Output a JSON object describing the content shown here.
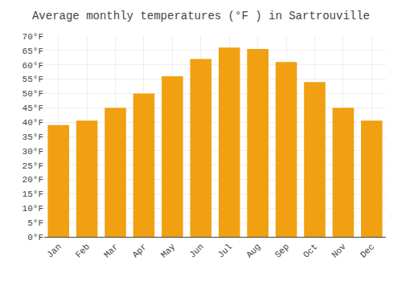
{
  "chart_data": {
    "type": "bar",
    "title": "Average monthly temperatures (°F ) in Sartrouville",
    "categories": [
      "Jan",
      "Feb",
      "Mar",
      "Apr",
      "May",
      "Jun",
      "Jul",
      "Aug",
      "Sep",
      "Oct",
      "Nov",
      "Dec"
    ],
    "values": [
      39,
      40.5,
      45,
      50,
      56,
      62,
      66,
      65.5,
      61,
      54,
      45,
      40.5
    ],
    "color": "#F0A010",
    "ylim": [
      0,
      70
    ],
    "yticks": [
      {
        "value": 0,
        "label": "0°F"
      },
      {
        "value": 5,
        "label": "5°F"
      },
      {
        "value": 10,
        "label": "10°F"
      },
      {
        "value": 15,
        "label": "15°F"
      },
      {
        "value": 20,
        "label": "20°F"
      },
      {
        "value": 25,
        "label": "25°F"
      },
      {
        "value": 30,
        "label": "30°F"
      },
      {
        "value": 35,
        "label": "35°F"
      },
      {
        "value": 40,
        "label": "40°F"
      },
      {
        "value": 45,
        "label": "45°F"
      },
      {
        "value": 50,
        "label": "50°F"
      },
      {
        "value": 55,
        "label": "55°F"
      },
      {
        "value": 60,
        "label": "60°F"
      },
      {
        "value": 65,
        "label": "65°F"
      },
      {
        "value": 70,
        "label": "70°F"
      }
    ],
    "grid": true
  }
}
